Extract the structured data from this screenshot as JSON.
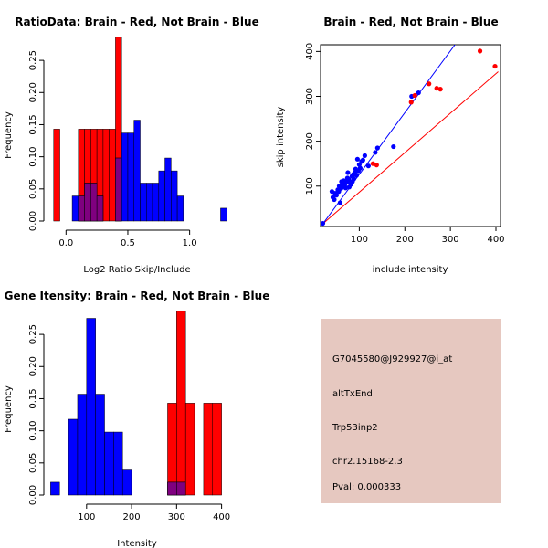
{
  "colors": {
    "brain": "#ff0000",
    "not_brain": "#0000ff",
    "overlap": "#7f007f",
    "info_bg": "#e6c8c0",
    "pval_text": "#8b0000"
  },
  "chart_data": [
    {
      "type": "histogram",
      "title": "RatioData: Brain - Red, Not Brain - Blue",
      "xlabel": "Log2 Ratio Skip/Include",
      "ylabel": "Frequency",
      "xlim": [
        -0.15,
        1.35
      ],
      "ylim": [
        0,
        0.28
      ],
      "xticks": [
        0.0,
        0.5,
        1.0
      ],
      "xtick_labels": [
        "0.0",
        "0.5",
        "1.0"
      ],
      "yticks": [
        0.0,
        0.05,
        0.1,
        0.15,
        0.2,
        0.25
      ],
      "ytick_labels": [
        "0.00",
        "0.05",
        "0.10",
        "0.15",
        "0.20",
        "0.25"
      ],
      "series": [
        {
          "name": "Brain",
          "color": "red",
          "bins": [
            {
              "x0": -0.1,
              "x1": -0.05,
              "freq": 0.143
            },
            {
              "x0": 0.1,
              "x1": 0.15,
              "freq": 0.143
            },
            {
              "x0": 0.15,
              "x1": 0.2,
              "freq": 0.143
            },
            {
              "x0": 0.2,
              "x1": 0.25,
              "freq": 0.143
            },
            {
              "x0": 0.25,
              "x1": 0.3,
              "freq": 0.143
            },
            {
              "x0": 0.3,
              "x1": 0.35,
              "freq": 0.143
            },
            {
              "x0": 0.35,
              "x1": 0.4,
              "freq": 0.143
            },
            {
              "x0": 0.4,
              "x1": 0.45,
              "freq": 0.286
            }
          ]
        },
        {
          "name": "Not Brain",
          "color": "blue",
          "bins": [
            {
              "x0": 0.05,
              "x1": 0.1,
              "freq": 0.039
            },
            {
              "x0": 0.1,
              "x1": 0.15,
              "freq": 0.039
            },
            {
              "x0": 0.15,
              "x1": 0.2,
              "freq": 0.059
            },
            {
              "x0": 0.2,
              "x1": 0.25,
              "freq": 0.059
            },
            {
              "x0": 0.25,
              "x1": 0.3,
              "freq": 0.039
            },
            {
              "x0": 0.4,
              "x1": 0.45,
              "freq": 0.098
            },
            {
              "x0": 0.45,
              "x1": 0.5,
              "freq": 0.137
            },
            {
              "x0": 0.5,
              "x1": 0.55,
              "freq": 0.137
            },
            {
              "x0": 0.55,
              "x1": 0.6,
              "freq": 0.157
            },
            {
              "x0": 0.6,
              "x1": 0.65,
              "freq": 0.059
            },
            {
              "x0": 0.65,
              "x1": 0.7,
              "freq": 0.059
            },
            {
              "x0": 0.7,
              "x1": 0.75,
              "freq": 0.059
            },
            {
              "x0": 0.75,
              "x1": 0.8,
              "freq": 0.078
            },
            {
              "x0": 0.8,
              "x1": 0.85,
              "freq": 0.098
            },
            {
              "x0": 0.85,
              "x1": 0.9,
              "freq": 0.078
            },
            {
              "x0": 0.9,
              "x1": 0.95,
              "freq": 0.039
            },
            {
              "x0": 1.25,
              "x1": 1.3,
              "freq": 0.02
            }
          ]
        }
      ]
    },
    {
      "type": "scatter",
      "title": "Brain - Red, Not Brain - Blue",
      "xlabel": "include intensity",
      "ylabel": "skip intensity",
      "xlim": [
        15,
        410
      ],
      "ylim": [
        10,
        415
      ],
      "xticks": [
        100,
        200,
        300,
        400
      ],
      "xtick_labels": [
        "100",
        "200",
        "300",
        "400"
      ],
      "yticks": [
        100,
        200,
        300,
        400
      ],
      "ytick_labels": [
        "100",
        "200",
        "300",
        "400"
      ],
      "series": [
        {
          "name": "Brain",
          "color": "red",
          "points": [
            [
              365,
              401
            ],
            [
              398,
              367
            ],
            [
              253,
              328
            ],
            [
              270,
              318
            ],
            [
              278,
              316
            ],
            [
              222,
              302
            ],
            [
              214,
              287
            ],
            [
              130,
              150
            ],
            [
              138,
              147
            ]
          ],
          "fit_line": [
            [
              20,
              16
            ],
            [
              405,
              355
            ]
          ]
        },
        {
          "name": "Not Brain",
          "color": "blue",
          "points": [
            [
              20,
              17
            ],
            [
              40,
              88
            ],
            [
              42,
              75
            ],
            [
              45,
              70
            ],
            [
              47,
              84
            ],
            [
              50,
              80
            ],
            [
              53,
              92
            ],
            [
              55,
              88
            ],
            [
              56,
              100
            ],
            [
              58,
              63
            ],
            [
              60,
              95
            ],
            [
              61,
              110
            ],
            [
              62,
              98
            ],
            [
              64,
              104
            ],
            [
              66,
              112
            ],
            [
              68,
              102
            ],
            [
              70,
              96
            ],
            [
              72,
              110
            ],
            [
              74,
              118
            ],
            [
              75,
              130
            ],
            [
              77,
              115
            ],
            [
              78,
              98
            ],
            [
              80,
              108
            ],
            [
              82,
              104
            ],
            [
              84,
              122
            ],
            [
              85,
              110
            ],
            [
              87,
              126
            ],
            [
              88,
              116
            ],
            [
              90,
              130
            ],
            [
              92,
              138
            ],
            [
              94,
              124
            ],
            [
              96,
              160
            ],
            [
              98,
              134
            ],
            [
              100,
              148
            ],
            [
              102,
              140
            ],
            [
              105,
              155
            ],
            [
              108,
              158
            ],
            [
              112,
              168
            ],
            [
              120,
              145
            ],
            [
              135,
              175
            ],
            [
              140,
              185
            ],
            [
              175,
              188
            ],
            [
              215,
              300
            ],
            [
              230,
              308
            ]
          ],
          "fit_line": [
            [
              20,
              16
            ],
            [
              310,
              415
            ]
          ]
        }
      ]
    },
    {
      "type": "histogram",
      "title": "Gene Itensity: Brain - Red, Not Brain - Blue",
      "xlabel": "Intensity",
      "ylabel": "Frequency",
      "xlim": [
        5,
        415
      ],
      "ylim": [
        0,
        0.28
      ],
      "xticks": [
        100,
        200,
        300,
        400
      ],
      "xtick_labels": [
        "100",
        "200",
        "300",
        "400"
      ],
      "yticks": [
        0.0,
        0.05,
        0.1,
        0.15,
        0.2,
        0.25
      ],
      "ytick_labels": [
        "0.00",
        "0.05",
        "0.10",
        "0.15",
        "0.20",
        "0.25"
      ],
      "series": [
        {
          "name": "Brain",
          "color": "red",
          "bins": [
            {
              "x0": 280,
              "x1": 300,
              "freq": 0.143
            },
            {
              "x0": 300,
              "x1": 320,
              "freq": 0.286
            },
            {
              "x0": 320,
              "x1": 340,
              "freq": 0.143
            },
            {
              "x0": 360,
              "x1": 380,
              "freq": 0.143
            },
            {
              "x0": 380,
              "x1": 400,
              "freq": 0.143
            }
          ]
        },
        {
          "name": "Not Brain",
          "color": "blue",
          "bins": [
            {
              "x0": 20,
              "x1": 40,
              "freq": 0.02
            },
            {
              "x0": 60,
              "x1": 80,
              "freq": 0.118
            },
            {
              "x0": 80,
              "x1": 100,
              "freq": 0.157
            },
            {
              "x0": 100,
              "x1": 120,
              "freq": 0.275
            },
            {
              "x0": 120,
              "x1": 140,
              "freq": 0.157
            },
            {
              "x0": 140,
              "x1": 160,
              "freq": 0.098
            },
            {
              "x0": 160,
              "x1": 180,
              "freq": 0.098
            },
            {
              "x0": 180,
              "x1": 200,
              "freq": 0.039
            },
            {
              "x0": 280,
              "x1": 300,
              "freq": 0.02
            },
            {
              "x0": 300,
              "x1": 320,
              "freq": 0.02
            }
          ]
        }
      ]
    }
  ],
  "info_panel": {
    "probe_id": "G7045580@J929927@i_at",
    "event_type": "altTxEnd",
    "gene": "Trp53inp2",
    "location": "chr2.15168-2.3",
    "pval": "Pval: 0.000333"
  }
}
